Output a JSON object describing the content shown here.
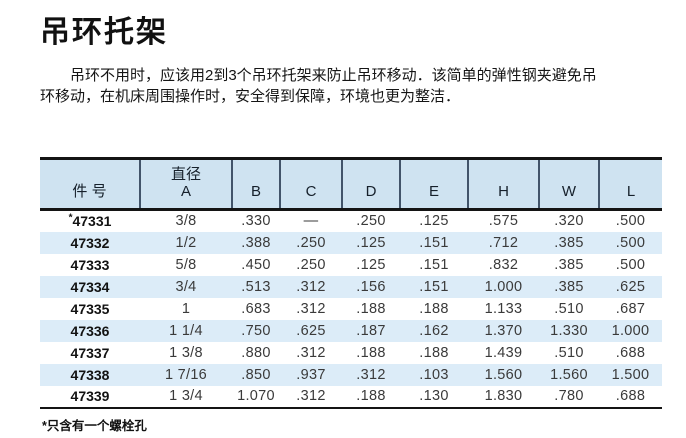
{
  "page": {
    "title": "吊环托架",
    "intro_lines": [
      "吊环不用时，应该用2到3个吊环托架来防止吊环移动．该简单的弹性钢夹避免吊",
      "环移动，在机床周围操作时，安全得到保障，环境也更为整洁．"
    ],
    "footnote": "*只含有一个螺栓孔"
  },
  "table": {
    "headers": [
      "件 号",
      "直径\nA",
      "B",
      "C",
      "D",
      "E",
      "H",
      "W",
      "L"
    ],
    "header_keys": [
      "part",
      "dia-a",
      "b",
      "c",
      "d",
      "e",
      "h",
      "w",
      "l"
    ],
    "rows": [
      [
        "*47331",
        "3/8",
        ".330",
        "—",
        ".250",
        ".125",
        ".575",
        ".320",
        ".500"
      ],
      [
        "47332",
        "1/2",
        ".388",
        ".250",
        ".125",
        ".151",
        ".712",
        ".385",
        ".500"
      ],
      [
        "47333",
        "5/8",
        ".450",
        ".250",
        ".125",
        ".151",
        ".832",
        ".385",
        ".500"
      ],
      [
        "47334",
        "3/4",
        ".513",
        ".312",
        ".156",
        ".151",
        "1.000",
        ".385",
        ".625"
      ],
      [
        "47335",
        "1",
        ".683",
        ".312",
        ".188",
        ".188",
        "1.133",
        ".510",
        ".687"
      ],
      [
        "47336",
        "1 1/4",
        ".750",
        ".625",
        ".187",
        ".162",
        "1.370",
        "1.330",
        "1.000"
      ],
      [
        "47337",
        "1 3/8",
        ".880",
        ".312",
        ".188",
        ".188",
        "1.439",
        ".510",
        ".688"
      ],
      [
        "47338",
        "1 7/16",
        ".850",
        ".937",
        ".312",
        ".103",
        "1.560",
        "1.560",
        "1.500"
      ],
      [
        "47339",
        "1 3/4",
        "1.070",
        ".312",
        ".188",
        ".130",
        "1.830",
        ".780",
        ".688"
      ]
    ]
  },
  "colors": {
    "header_bg": "#cfe3f1",
    "stripe_bg": "#dcecf8",
    "divider": "#42546a",
    "rule": "#141414"
  }
}
